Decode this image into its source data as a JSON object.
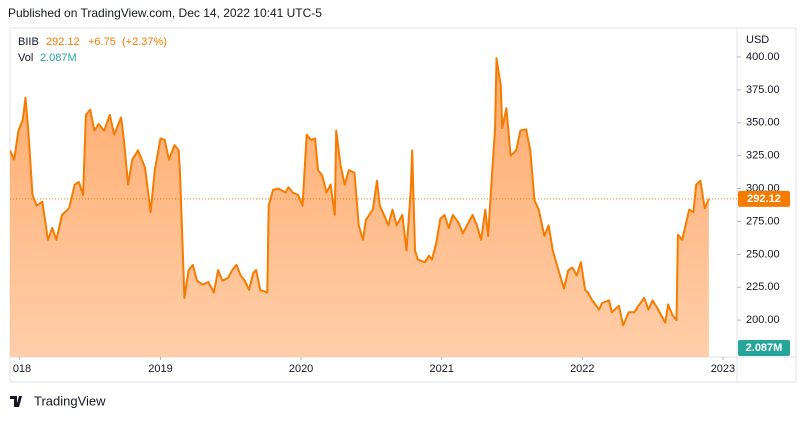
{
  "published": "Published on TradingView.com, Dec 14, 2022 10:41 UTC-5",
  "brand": "TradingView",
  "chart_data": {
    "type": "area",
    "symbol": "BIIB",
    "last": 292.12,
    "change": {
      "value": 6.75,
      "label": "+6.75"
    },
    "change_pct": {
      "value": 2.37,
      "label": "(+2.37%)"
    },
    "volume": {
      "name": "Vol",
      "value": 2087000,
      "label": "2.087M",
      "color": "#26a69a"
    },
    "y_axis_label": "USD",
    "grid": false,
    "xlim": [
      2017.93,
      2023.1
    ],
    "xticks": [
      {
        "value": 2018,
        "label": "018"
      },
      2019,
      2020,
      2021,
      2022,
      2023
    ],
    "ylim": [
      172,
      422
    ],
    "yticks": [
      {
        "value": 200,
        "label": "200.00"
      },
      {
        "value": 225,
        "label": "225.00"
      },
      {
        "value": 250,
        "label": "250.00"
      },
      {
        "value": 275,
        "label": "275.00"
      },
      {
        "value": 300,
        "label": "300.00"
      },
      {
        "value": 325,
        "label": "325.00"
      },
      {
        "value": 350,
        "label": "350.00"
      },
      {
        "value": 375,
        "label": "375.00"
      },
      {
        "value": 400,
        "label": "400.00"
      }
    ],
    "x": [
      2017.93,
      2017.96,
      2017.99,
      2018.02,
      2018.04,
      2018.06,
      2018.09,
      2018.12,
      2018.16,
      2018.2,
      2018.23,
      2018.26,
      2018.3,
      2018.35,
      2018.39,
      2018.42,
      2018.45,
      2018.47,
      2018.5,
      2018.53,
      2018.56,
      2018.6,
      2018.64,
      2018.67,
      2018.72,
      2018.74,
      2018.77,
      2018.8,
      2018.84,
      2018.89,
      2018.93,
      2018.96,
      2019,
      2019.03,
      2019.06,
      2019.1,
      2019.13,
      2019.14,
      2019.17,
      2019.2,
      2019.23,
      2019.26,
      2019.3,
      2019.34,
      2019.38,
      2019.41,
      2019.44,
      2019.48,
      2019.51,
      2019.54,
      2019.57,
      2019.6,
      2019.63,
      2019.66,
      2019.68,
      2019.71,
      2019.76,
      2019.77,
      2019.8,
      2019.84,
      2019.89,
      2019.91,
      2019.94,
      2019.98,
      2020.01,
      2020.04,
      2020.07,
      2020.1,
      2020.12,
      2020.15,
      2020.18,
      2020.21,
      2020.24,
      2020.25,
      2020.28,
      2020.31,
      2020.34,
      2020.38,
      2020.41,
      2020.44,
      2020.46,
      2020.51,
      2020.54,
      2020.56,
      2020.59,
      2020.62,
      2020.65,
      2020.68,
      2020.72,
      2020.75,
      2020.78,
      2020.79,
      2020.81,
      2020.83,
      2020.88,
      2020.91,
      2020.93,
      2020.96,
      2020.99,
      2021.02,
      2021.05,
      2021.08,
      2021.12,
      2021.15,
      2021.18,
      2021.22,
      2021.25,
      2021.28,
      2021.31,
      2021.33,
      2021.36,
      2021.38,
      2021.39,
      2021.42,
      2021.43,
      2021.46,
      2021.49,
      2021.53,
      2021.56,
      2021.6,
      2021.63,
      2021.66,
      2021.69,
      2021.73,
      2021.76,
      2021.79,
      2021.83,
      2021.87,
      2021.9,
      2021.93,
      2021.96,
      2021.99,
      2022.02,
      2022.04,
      2022.07,
      2022.12,
      2022.14,
      2022.19,
      2022.21,
      2022.26,
      2022.29,
      2022.33,
      2022.37,
      2022.4,
      2022.44,
      2022.47,
      2022.5,
      2022.54,
      2022.59,
      2022.61,
      2022.64,
      2022.67,
      2022.68,
      2022.71,
      2022.76,
      2022.79,
      2022.81,
      2022.84,
      2022.87,
      2022.9
    ],
    "series": [
      {
        "name": "BIIB",
        "color": "#f57c00",
        "fill": "#ffb27a",
        "values": [
          329,
          322,
          344,
          352,
          369,
          344,
          295,
          287,
          290,
          261,
          270,
          261,
          280,
          285,
          303,
          305,
          295,
          356,
          360,
          344,
          349,
          344,
          356,
          341,
          354,
          337,
          303,
          322,
          329,
          316,
          282,
          314,
          338,
          337,
          322,
          333,
          329,
          310,
          217,
          238,
          242,
          230,
          227,
          229,
          221,
          238,
          230,
          232,
          238,
          242,
          234,
          230,
          223,
          236,
          238,
          223,
          221,
          287,
          299,
          300,
          297,
          301,
          297,
          295,
          287,
          341,
          337,
          338,
          314,
          310,
          297,
          303,
          280,
          344,
          318,
          303,
          314,
          312,
          272,
          261,
          276,
          284,
          306,
          287,
          280,
          272,
          284,
          272,
          280,
          253,
          299,
          329,
          253,
          246,
          244,
          249,
          246,
          258,
          277,
          280,
          270,
          280,
          274,
          266,
          272,
          280,
          272,
          261,
          284,
          264,
          314,
          346,
          399,
          378,
          346,
          361,
          325,
          329,
          344,
          345,
          329,
          291,
          284,
          264,
          272,
          253,
          238,
          224,
          238,
          240,
          234,
          244,
          223,
          221,
          215,
          208,
          213,
          215,
          206,
          211,
          196,
          206,
          206,
          211,
          217,
          208,
          215,
          208,
          198,
          212,
          204,
          200,
          265,
          261,
          284,
          282,
          303,
          306,
          285,
          292.12
        ]
      }
    ]
  }
}
